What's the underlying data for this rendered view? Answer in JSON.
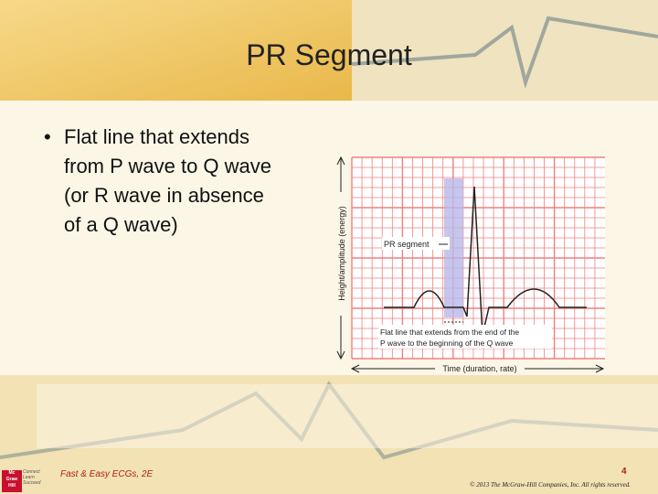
{
  "header": {
    "title": "PR Segment"
  },
  "body": {
    "bullets": [
      "Flat line that extends from P wave to Q wave (or R wave in absence of a Q wave)"
    ]
  },
  "figure": {
    "y_axis_label": "Height/amplitude (energy)",
    "x_axis_label": "Time (duration, rate)",
    "segment_label": "PR segment",
    "caption_lines": [
      "Flat line that extends from the end of the",
      "P wave to the beginning of the Q wave"
    ]
  },
  "footer": {
    "book": "Fast & Easy ECGs, 2E",
    "page": "4",
    "copyright": "© 2013 The McGraw-Hill Companies, Inc. All rights reserved.",
    "logo": [
      "Mc",
      "Graw",
      "Hill"
    ],
    "tagline": [
      "Connect",
      "Learn",
      "Succeed"
    ]
  }
}
